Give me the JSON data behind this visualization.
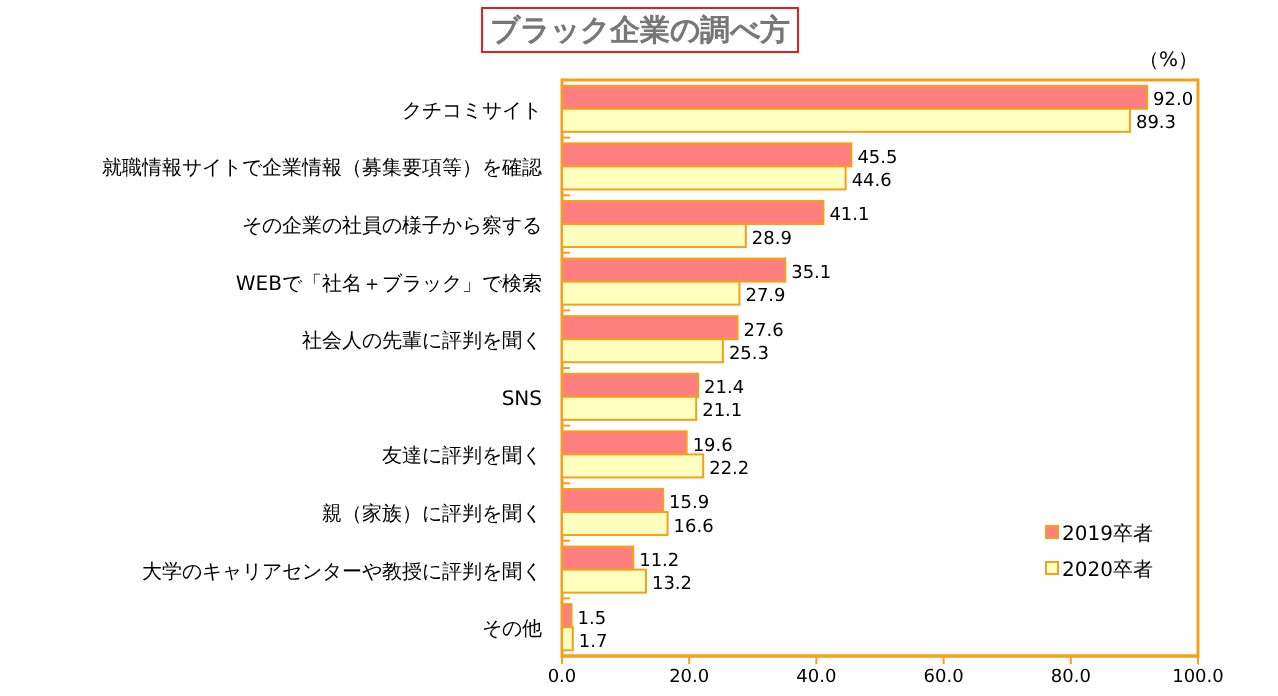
{
  "chart_data": {
    "type": "bar",
    "orientation": "horizontal",
    "title": "ブラック企業の調べ方",
    "categories": [
      "クチコミサイト",
      "就職情報サイトで企業情報（募集要項等）を確認",
      "その企業の社員の様子から察する",
      "WEBで「社名＋ブラック」で検索",
      "社会人の先輩に評判を聞く",
      "SNS",
      "友達に評判を聞く",
      "親（家族）に評判を聞く",
      "大学のキャリアセンターや教授に評判を聞く",
      "その他"
    ],
    "series": [
      {
        "name": "2019卒者",
        "color": "#ff7f7f",
        "values": [
          92.0,
          45.5,
          41.1,
          35.1,
          27.6,
          21.4,
          19.6,
          15.9,
          11.2,
          1.5
        ],
        "value_labels": [
          "92.0",
          "45.5",
          "41.1",
          "35.1",
          "27.6",
          "21.4",
          "19.6",
          "15.9",
          "11.2",
          "1.5"
        ]
      },
      {
        "name": "2020卒者",
        "color": "#ffffc0",
        "values": [
          89.3,
          44.6,
          28.9,
          27.9,
          25.3,
          21.1,
          22.2,
          16.6,
          13.2,
          1.7
        ],
        "value_labels": [
          "89.3",
          "44.6",
          "28.9",
          "27.9",
          "25.3",
          "21.1",
          "22.2",
          "16.6",
          "13.2",
          "1.7"
        ]
      }
    ],
    "xlim": [
      0,
      100
    ],
    "xticks": [
      {
        "value": 0,
        "label": "0.0"
      },
      {
        "value": 20,
        "label": "20.0"
      },
      {
        "value": 40,
        "label": "40.0"
      },
      {
        "value": 60,
        "label": "60.0"
      },
      {
        "value": 80,
        "label": "80.0"
      },
      {
        "value": 100,
        "label": "100.0"
      }
    ],
    "annotations": [
      "（%）"
    ],
    "legend": "bottom right",
    "grid": false
  }
}
